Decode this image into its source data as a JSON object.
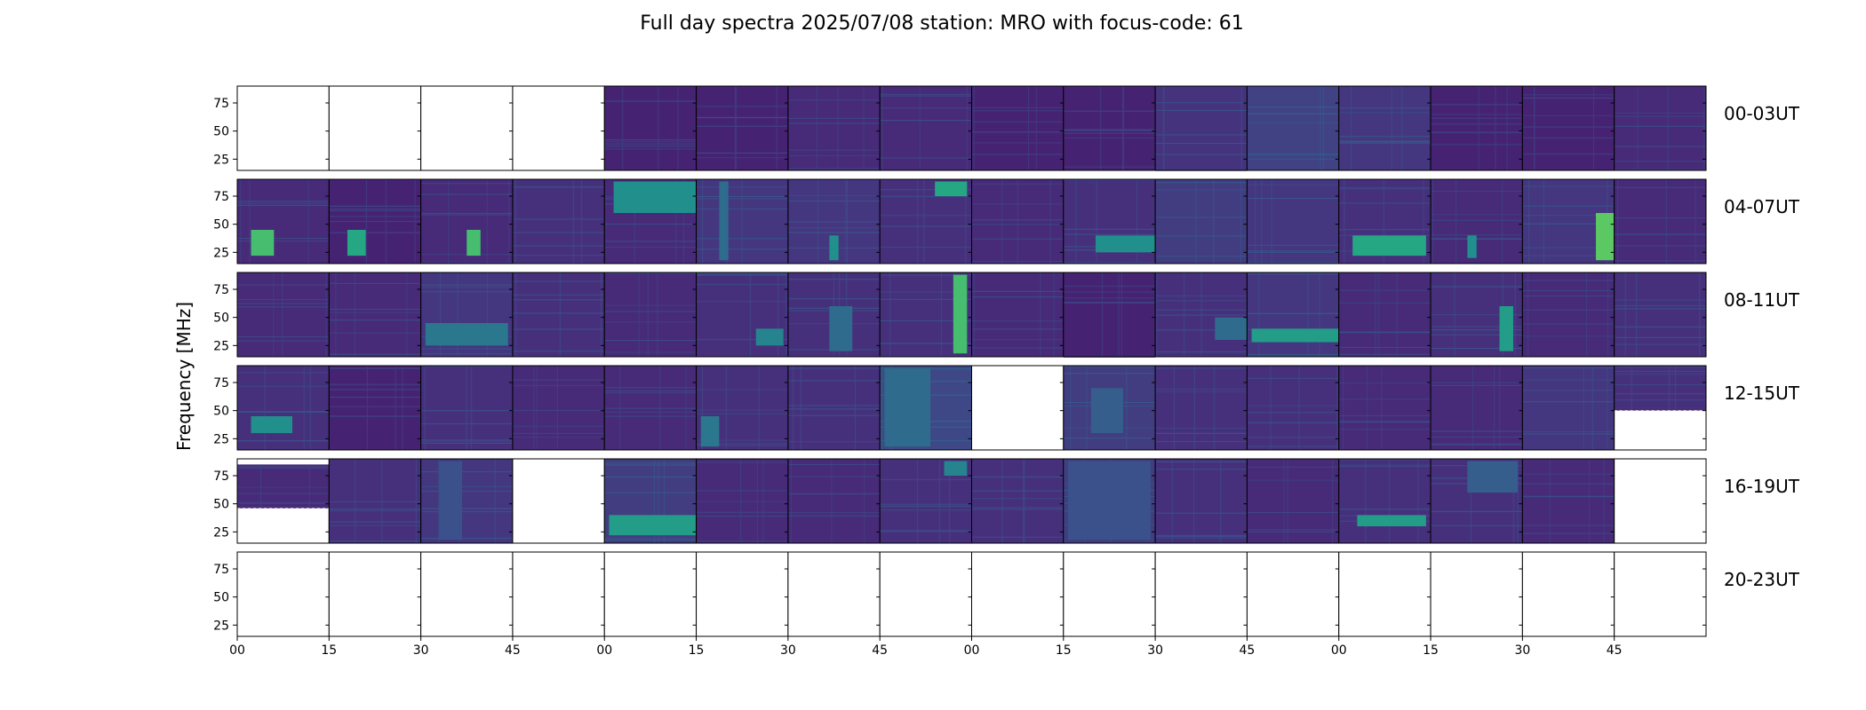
{
  "chart_data": {
    "type": "heatmap",
    "title": "Full day spectra 2025/07/08 station: MRO with focus-code: 61",
    "ylabel": "Frequency [MHz]",
    "xlabel": "",
    "colormap": "viridis",
    "ylim_mhz": [
      15,
      90
    ],
    "yticks": [
      25,
      50,
      75
    ],
    "xticks": [
      "00",
      "15",
      "30",
      "45",
      "00",
      "15",
      "30",
      "45",
      "00",
      "15",
      "30",
      "45",
      "00",
      "15",
      "30",
      "45"
    ],
    "panel_minutes": 15,
    "rows": [
      {
        "label": "00-03UT",
        "panels": [
          {
            "state": "empty"
          },
          {
            "state": "empty"
          },
          {
            "state": "empty"
          },
          {
            "state": "empty"
          },
          {
            "state": "data",
            "level": 0.1,
            "bursts": []
          },
          {
            "state": "data",
            "level": 0.1,
            "bursts": []
          },
          {
            "state": "data",
            "level": 0.12,
            "bursts": []
          },
          {
            "state": "data",
            "level": 0.12,
            "bursts": []
          },
          {
            "state": "data",
            "level": 0.1,
            "bursts": []
          },
          {
            "state": "data",
            "level": 0.1,
            "bursts": []
          },
          {
            "state": "data",
            "level": 0.15,
            "bursts": []
          },
          {
            "state": "data",
            "level": 0.2,
            "bursts": []
          },
          {
            "state": "data",
            "level": 0.16,
            "bursts": []
          },
          {
            "state": "data",
            "level": 0.1,
            "bursts": []
          },
          {
            "state": "data",
            "level": 0.1,
            "bursts": []
          },
          {
            "state": "data",
            "level": 0.12,
            "bursts": []
          }
        ]
      },
      {
        "label": "04-07UT",
        "panels": [
          {
            "state": "data",
            "level": 0.12,
            "bursts": [
              {
                "t0": 0.15,
                "t1": 0.4,
                "f0": 22,
                "f1": 45,
                "i": 0.7
              }
            ]
          },
          {
            "state": "data",
            "level": 0.1,
            "bursts": [
              {
                "t0": 0.2,
                "t1": 0.4,
                "f0": 22,
                "f1": 45,
                "i": 0.6
              }
            ]
          },
          {
            "state": "data",
            "level": 0.12,
            "bursts": [
              {
                "t0": 0.5,
                "t1": 0.65,
                "f0": 22,
                "f1": 45,
                "i": 0.7
              }
            ]
          },
          {
            "state": "data",
            "level": 0.14,
            "bursts": []
          },
          {
            "state": "data",
            "level": 0.12,
            "bursts": [
              {
                "t0": 0.1,
                "t1": 1.0,
                "f0": 60,
                "f1": 88,
                "i": 0.5
              }
            ]
          },
          {
            "state": "data",
            "level": 0.16,
            "bursts": [
              {
                "t0": 0.25,
                "t1": 0.35,
                "f0": 18,
                "f1": 88,
                "i": 0.35
              }
            ]
          },
          {
            "state": "data",
            "level": 0.16,
            "bursts": [
              {
                "t0": 0.45,
                "t1": 0.55,
                "f0": 18,
                "f1": 40,
                "i": 0.5
              }
            ]
          },
          {
            "state": "data",
            "level": 0.14,
            "bursts": [
              {
                "t0": 0.6,
                "t1": 0.95,
                "f0": 75,
                "f1": 88,
                "i": 0.6
              }
            ]
          },
          {
            "state": "data",
            "level": 0.12,
            "bursts": []
          },
          {
            "state": "data",
            "level": 0.14,
            "bursts": [
              {
                "t0": 0.35,
                "t1": 1.0,
                "f0": 25,
                "f1": 40,
                "i": 0.5
              }
            ]
          },
          {
            "state": "data",
            "level": 0.18,
            "bursts": []
          },
          {
            "state": "data",
            "level": 0.16,
            "bursts": []
          },
          {
            "state": "data",
            "level": 0.14,
            "bursts": [
              {
                "t0": 0.15,
                "t1": 0.95,
                "f0": 22,
                "f1": 40,
                "i": 0.6
              }
            ]
          },
          {
            "state": "data",
            "level": 0.12,
            "bursts": [
              {
                "t0": 0.4,
                "t1": 0.5,
                "f0": 20,
                "f1": 40,
                "i": 0.5
              }
            ]
          },
          {
            "state": "data",
            "level": 0.16,
            "bursts": [
              {
                "t0": 0.8,
                "t1": 1.0,
                "f0": 18,
                "f1": 60,
                "i": 0.75
              }
            ]
          },
          {
            "state": "data",
            "level": 0.12,
            "bursts": []
          }
        ]
      },
      {
        "label": "08-11UT",
        "panels": [
          {
            "state": "data",
            "level": 0.12,
            "bursts": []
          },
          {
            "state": "data",
            "level": 0.12,
            "bursts": []
          },
          {
            "state": "data",
            "level": 0.16,
            "bursts": [
              {
                "t0": 0.05,
                "t1": 0.95,
                "f0": 25,
                "f1": 45,
                "i": 0.4
              }
            ]
          },
          {
            "state": "data",
            "level": 0.14,
            "bursts": []
          },
          {
            "state": "data",
            "level": 0.12,
            "bursts": []
          },
          {
            "state": "data",
            "level": 0.14,
            "bursts": [
              {
                "t0": 0.65,
                "t1": 0.95,
                "f0": 25,
                "f1": 40,
                "i": 0.45
              }
            ]
          },
          {
            "state": "data",
            "level": 0.14,
            "bursts": [
              {
                "t0": 0.45,
                "t1": 0.7,
                "f0": 20,
                "f1": 60,
                "i": 0.35
              }
            ]
          },
          {
            "state": "data",
            "level": 0.14,
            "bursts": [
              {
                "t0": 0.8,
                "t1": 0.95,
                "f0": 18,
                "f1": 88,
                "i": 0.7
              }
            ]
          },
          {
            "state": "data",
            "level": 0.12,
            "bursts": []
          },
          {
            "state": "data",
            "level": 0.1,
            "bursts": []
          },
          {
            "state": "data",
            "level": 0.14,
            "bursts": [
              {
                "t0": 0.65,
                "t1": 1.0,
                "f0": 30,
                "f1": 50,
                "i": 0.35
              }
            ]
          },
          {
            "state": "data",
            "level": 0.16,
            "bursts": [
              {
                "t0": 0.05,
                "t1": 1.0,
                "f0": 28,
                "f1": 40,
                "i": 0.55
              }
            ]
          },
          {
            "state": "data",
            "level": 0.12,
            "bursts": []
          },
          {
            "state": "data",
            "level": 0.14,
            "bursts": [
              {
                "t0": 0.75,
                "t1": 0.9,
                "f0": 20,
                "f1": 60,
                "i": 0.55
              }
            ]
          },
          {
            "state": "data",
            "level": 0.12,
            "bursts": []
          },
          {
            "state": "data",
            "level": 0.14,
            "bursts": []
          }
        ]
      },
      {
        "label": "12-15UT",
        "panels": [
          {
            "state": "data",
            "level": 0.14,
            "bursts": [
              {
                "t0": 0.15,
                "t1": 0.6,
                "f0": 30,
                "f1": 45,
                "i": 0.5
              }
            ]
          },
          {
            "state": "data",
            "level": 0.1,
            "bursts": []
          },
          {
            "state": "data",
            "level": 0.14,
            "bursts": []
          },
          {
            "state": "data",
            "level": 0.12,
            "bursts": []
          },
          {
            "state": "data",
            "level": 0.12,
            "bursts": []
          },
          {
            "state": "data",
            "level": 0.14,
            "bursts": [
              {
                "t0": 0.05,
                "t1": 0.25,
                "f0": 18,
                "f1": 45,
                "i": 0.4
              }
            ]
          },
          {
            "state": "data",
            "level": 0.14,
            "bursts": []
          },
          {
            "state": "data",
            "level": 0.22,
            "bursts": [
              {
                "t0": 0.05,
                "t1": 0.55,
                "f0": 18,
                "f1": 88,
                "i": 0.35
              }
            ]
          },
          {
            "state": "empty"
          },
          {
            "state": "data",
            "level": 0.18,
            "bursts": [
              {
                "t0": 0.3,
                "t1": 0.65,
                "f0": 30,
                "f1": 70,
                "i": 0.3
              }
            ]
          },
          {
            "state": "data",
            "level": 0.14,
            "bursts": []
          },
          {
            "state": "data",
            "level": 0.14,
            "bursts": []
          },
          {
            "state": "data",
            "level": 0.12,
            "bursts": []
          },
          {
            "state": "data",
            "level": 0.12,
            "bursts": []
          },
          {
            "state": "data",
            "level": 0.16,
            "bursts": []
          },
          {
            "state": "partial",
            "level": 0.14,
            "bursts": [],
            "f_low": 50
          }
        ]
      },
      {
        "label": "16-19UT",
        "panels": [
          {
            "state": "partial",
            "level": 0.12,
            "bursts": [],
            "f_low": 46,
            "f_high": 85
          },
          {
            "state": "data",
            "level": 0.14,
            "bursts": []
          },
          {
            "state": "data",
            "level": 0.16,
            "bursts": [
              {
                "t0": 0.2,
                "t1": 0.45,
                "f0": 18,
                "f1": 88,
                "i": 0.25
              }
            ]
          },
          {
            "state": "empty"
          },
          {
            "state": "data",
            "level": 0.18,
            "bursts": [
              {
                "t0": 0.05,
                "t1": 1.0,
                "f0": 22,
                "f1": 40,
                "i": 0.55
              }
            ]
          },
          {
            "state": "data",
            "level": 0.12,
            "bursts": []
          },
          {
            "state": "data",
            "level": 0.12,
            "bursts": []
          },
          {
            "state": "data",
            "level": 0.14,
            "bursts": [
              {
                "t0": 0.7,
                "t1": 0.95,
                "f0": 75,
                "f1": 88,
                "i": 0.45
              }
            ]
          },
          {
            "state": "data",
            "level": 0.14,
            "bursts": []
          },
          {
            "state": "data",
            "level": 0.18,
            "bursts": [
              {
                "t0": 0.05,
                "t1": 0.95,
                "f0": 18,
                "f1": 88,
                "i": 0.25
              }
            ]
          },
          {
            "state": "data",
            "level": 0.14,
            "bursts": []
          },
          {
            "state": "data",
            "level": 0.12,
            "bursts": []
          },
          {
            "state": "data",
            "level": 0.14,
            "bursts": [
              {
                "t0": 0.2,
                "t1": 0.95,
                "f0": 30,
                "f1": 40,
                "i": 0.55
              }
            ]
          },
          {
            "state": "data",
            "level": 0.14,
            "bursts": [
              {
                "t0": 0.4,
                "t1": 0.95,
                "f0": 60,
                "f1": 88,
                "i": 0.3
              }
            ]
          },
          {
            "state": "data",
            "level": 0.12,
            "bursts": []
          },
          {
            "state": "empty"
          }
        ]
      },
      {
        "label": "20-23UT",
        "panels": [
          {
            "state": "empty"
          },
          {
            "state": "empty"
          },
          {
            "state": "empty"
          },
          {
            "state": "empty"
          },
          {
            "state": "empty"
          },
          {
            "state": "empty"
          },
          {
            "state": "empty"
          },
          {
            "state": "empty"
          },
          {
            "state": "empty"
          },
          {
            "state": "empty"
          },
          {
            "state": "empty"
          },
          {
            "state": "empty"
          },
          {
            "state": "empty"
          },
          {
            "state": "empty"
          },
          {
            "state": "empty"
          },
          {
            "state": "empty"
          }
        ]
      }
    ]
  }
}
